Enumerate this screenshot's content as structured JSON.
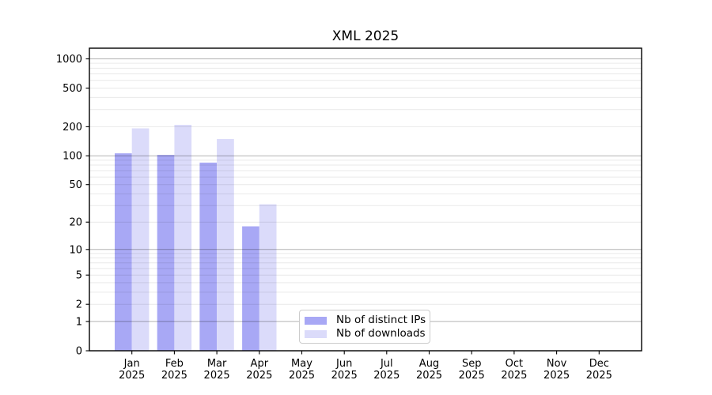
{
  "chart_data": {
    "type": "bar",
    "title": "XML 2025",
    "categories": [
      "Jan",
      "Feb",
      "Mar",
      "Apr",
      "May",
      "Jun",
      "Jul",
      "Aug",
      "Sep",
      "Oct",
      "Nov",
      "Dec"
    ],
    "category_year": "2025",
    "series": [
      {
        "name": "Nb of distinct IPs",
        "color": "#a8a8f5",
        "values": [
          106,
          102,
          85,
          18,
          0,
          0,
          0,
          0,
          0,
          0,
          0,
          0
        ]
      },
      {
        "name": "Nb of downloads",
        "color": "#dbdbfa",
        "values": [
          192,
          209,
          149,
          31,
          0,
          0,
          0,
          0,
          0,
          0,
          0,
          0
        ]
      }
    ],
    "y_scale": "log10(value+1)",
    "y_ticks": [
      0,
      1,
      2,
      5,
      10,
      20,
      50,
      100,
      200,
      500,
      1000
    ],
    "y_major_gridlines": [
      1,
      10,
      100,
      1000
    ],
    "y_minor_gridline_decades": [
      1,
      10,
      100
    ],
    "ylim": [
      0,
      1280
    ],
    "xlabel": "",
    "ylabel": "",
    "grid": true,
    "legend_position": "lower-center"
  }
}
